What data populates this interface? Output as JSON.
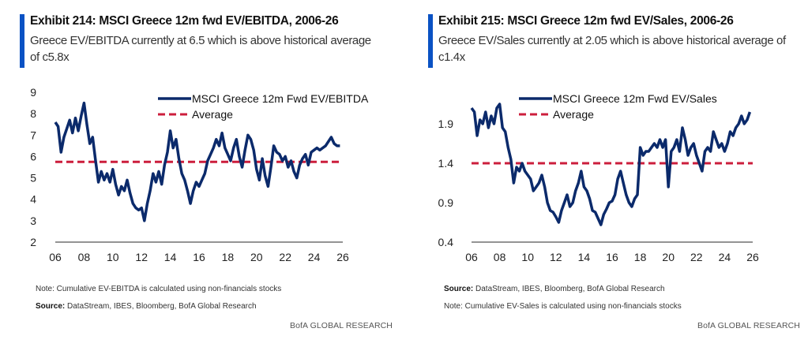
{
  "colors": {
    "accent": "#0a52c4",
    "series": "#0b2a6b",
    "average": "#cc1e3c",
    "axis": "#555555"
  },
  "exhibits": [
    {
      "title": "Exhibit 214: MSCI Greece 12m fwd EV/EBITDA, 2006-26",
      "subtitle": "Greece EV/EBITDA currently at 6.5 which is above historical average of c5.8x",
      "notes": [
        {
          "prefix": "",
          "text": "Note: Cumulative EV-EBITDA is calculated using non-financials stocks"
        },
        {
          "prefix": "Source:",
          "text": " DataStream, IBES, Bloomberg, BofA Global Research"
        }
      ],
      "brand": "BofA GLOBAL RESEARCH"
    },
    {
      "title": "Exhibit 215: MSCI Greece 12m fwd EV/Sales, 2006-26",
      "subtitle": "Greece EV/Sales currently at 2.05 which is above historical average of c1.4x",
      "notes": [
        {
          "prefix": "Source:",
          "text": " DataStream, IBES, Bloomberg, BofA Global Research"
        },
        {
          "prefix": "",
          "text": "Note: Cumulative EV-Sales is calculated using non-financials stocks"
        }
      ],
      "brand": "BofA GLOBAL RESEARCH"
    }
  ],
  "chart_data": [
    {
      "type": "line",
      "title": "MSCI Greece 12m fwd EV/EBITDA, 2006-26",
      "xlabel": "",
      "ylabel": "",
      "xlim": [
        2006,
        2026
      ],
      "ylim": [
        2,
        9
      ],
      "yticks": [
        2,
        3,
        4,
        5,
        6,
        7,
        8,
        9
      ],
      "ytick_labels": [
        "2",
        "3",
        "4",
        "5",
        "6",
        "7",
        "8",
        "9"
      ],
      "xticks": [
        2006,
        2008,
        2010,
        2012,
        2014,
        2016,
        2018,
        2020,
        2022,
        2024,
        2026
      ],
      "xtick_labels": [
        "06",
        "08",
        "10",
        "12",
        "14",
        "16",
        "18",
        "20",
        "22",
        "24",
        "26"
      ],
      "grid": false,
      "legend": "top-right",
      "series": [
        {
          "name": "MSCI Greece 12m Fwd EV/EBITDA",
          "style": "solid",
          "x": [
            2006.0,
            2006.2,
            2006.4,
            2006.6,
            2006.8,
            2007.0,
            2007.2,
            2007.4,
            2007.6,
            2007.8,
            2008.0,
            2008.2,
            2008.4,
            2008.6,
            2008.8,
            2009.0,
            2009.2,
            2009.4,
            2009.6,
            2009.8,
            2010.0,
            2010.2,
            2010.4,
            2010.6,
            2010.8,
            2011.0,
            2011.2,
            2011.4,
            2011.6,
            2011.8,
            2012.0,
            2012.2,
            2012.4,
            2012.6,
            2012.8,
            2013.0,
            2013.2,
            2013.4,
            2013.6,
            2013.8,
            2014.0,
            2014.2,
            2014.4,
            2014.6,
            2014.8,
            2015.0,
            2015.2,
            2015.4,
            2015.6,
            2015.8,
            2016.0,
            2016.2,
            2016.4,
            2016.6,
            2016.8,
            2017.0,
            2017.2,
            2017.4,
            2017.6,
            2017.8,
            2018.0,
            2018.2,
            2018.4,
            2018.6,
            2018.8,
            2019.0,
            2019.2,
            2019.4,
            2019.6,
            2019.8,
            2020.0,
            2020.2,
            2020.4,
            2020.6,
            2020.8,
            2021.0,
            2021.2,
            2021.4,
            2021.6,
            2021.8,
            2022.0,
            2022.2,
            2022.4,
            2022.6,
            2022.8,
            2023.0,
            2023.2,
            2023.4,
            2023.6,
            2023.8,
            2024.0,
            2024.2,
            2024.4,
            2024.6,
            2024.8,
            2025.0,
            2025.2,
            2025.4,
            2025.6,
            2025.8
          ],
          "values": [
            7.6,
            7.4,
            6.2,
            6.9,
            7.3,
            7.7,
            7.1,
            7.8,
            7.2,
            7.9,
            8.5,
            7.5,
            6.6,
            6.9,
            5.8,
            4.8,
            5.3,
            4.9,
            5.2,
            4.8,
            5.4,
            4.7,
            4.2,
            4.6,
            4.4,
            4.9,
            4.3,
            3.8,
            3.6,
            3.5,
            3.6,
            3.0,
            3.8,
            4.4,
            5.2,
            4.8,
            5.3,
            4.7,
            5.6,
            6.2,
            7.2,
            6.4,
            6.8,
            5.9,
            5.2,
            4.9,
            4.4,
            3.8,
            4.4,
            4.8,
            4.6,
            4.9,
            5.2,
            5.8,
            6.1,
            6.4,
            6.8,
            6.5,
            7.1,
            6.4,
            6.1,
            5.8,
            6.4,
            6.8,
            6.0,
            5.5,
            6.3,
            7.0,
            6.8,
            6.3,
            5.4,
            4.9,
            5.9,
            5.1,
            4.6,
            5.5,
            6.5,
            6.2,
            6.1,
            5.8,
            6.0,
            5.5,
            5.8,
            5.3,
            5.0,
            5.6,
            5.9,
            6.1,
            5.6,
            6.2,
            6.3,
            6.4,
            6.3,
            6.4,
            6.5,
            6.7,
            6.9,
            6.6,
            6.5,
            6.5
          ]
        },
        {
          "name": "Average",
          "style": "dashed",
          "value": 5.75
        }
      ]
    },
    {
      "type": "line",
      "title": "MSCI Greece 12m fwd EV/Sales, 2006-26",
      "xlabel": "",
      "ylabel": "",
      "xlim": [
        2006,
        2026
      ],
      "ylim": [
        0.4,
        2.4
      ],
      "yticks": [
        0.4,
        0.9,
        1.4,
        1.9
      ],
      "ytick_labels": [
        "0.4",
        "0.9",
        "1.4",
        "1.9"
      ],
      "xticks": [
        2006,
        2008,
        2010,
        2012,
        2014,
        2016,
        2018,
        2020,
        2022,
        2024,
        2026
      ],
      "xtick_labels": [
        "06",
        "08",
        "10",
        "12",
        "14",
        "16",
        "18",
        "20",
        "22",
        "24",
        "26"
      ],
      "grid": false,
      "legend": "top-right",
      "series": [
        {
          "name": "MSCI Greece 12m Fwd EV/Sales",
          "style": "solid",
          "x": [
            2006.0,
            2006.2,
            2006.4,
            2006.6,
            2006.8,
            2007.0,
            2007.2,
            2007.4,
            2007.6,
            2007.8,
            2008.0,
            2008.2,
            2008.4,
            2008.6,
            2008.8,
            2009.0,
            2009.2,
            2009.4,
            2009.6,
            2009.8,
            2010.0,
            2010.2,
            2010.4,
            2010.6,
            2010.8,
            2011.0,
            2011.2,
            2011.4,
            2011.6,
            2011.8,
            2012.0,
            2012.2,
            2012.4,
            2012.6,
            2012.8,
            2013.0,
            2013.2,
            2013.4,
            2013.6,
            2013.8,
            2014.0,
            2014.2,
            2014.4,
            2014.6,
            2014.8,
            2015.0,
            2015.2,
            2015.4,
            2015.6,
            2015.8,
            2016.0,
            2016.2,
            2016.4,
            2016.6,
            2016.8,
            2017.0,
            2017.2,
            2017.4,
            2017.6,
            2017.8,
            2018.0,
            2018.2,
            2018.4,
            2018.6,
            2018.8,
            2019.0,
            2019.2,
            2019.4,
            2019.6,
            2019.8,
            2020.0,
            2020.2,
            2020.4,
            2020.6,
            2020.8,
            2021.0,
            2021.2,
            2021.4,
            2021.6,
            2021.8,
            2022.0,
            2022.2,
            2022.4,
            2022.6,
            2022.8,
            2023.0,
            2023.2,
            2023.4,
            2023.6,
            2023.8,
            2024.0,
            2024.2,
            2024.4,
            2024.6,
            2024.8,
            2025.0,
            2025.2,
            2025.4,
            2025.6,
            2025.8
          ],
          "values": [
            2.1,
            2.05,
            1.75,
            1.95,
            1.9,
            2.05,
            1.85,
            2.0,
            1.9,
            2.1,
            2.15,
            1.85,
            1.8,
            1.6,
            1.45,
            1.15,
            1.35,
            1.3,
            1.4,
            1.3,
            1.25,
            1.2,
            1.05,
            1.1,
            1.15,
            1.25,
            1.1,
            0.9,
            0.8,
            0.78,
            0.72,
            0.65,
            0.8,
            0.9,
            1.0,
            0.85,
            0.9,
            1.05,
            1.15,
            1.3,
            1.1,
            1.05,
            0.95,
            0.8,
            0.78,
            0.7,
            0.62,
            0.75,
            0.82,
            0.9,
            0.92,
            1.0,
            1.2,
            1.3,
            1.15,
            1.0,
            0.9,
            0.85,
            0.95,
            1.0,
            1.6,
            1.5,
            1.55,
            1.55,
            1.6,
            1.65,
            1.6,
            1.7,
            1.6,
            1.7,
            1.1,
            1.55,
            1.6,
            1.7,
            1.55,
            1.85,
            1.7,
            1.5,
            1.6,
            1.65,
            1.5,
            1.4,
            1.3,
            1.55,
            1.6,
            1.55,
            1.8,
            1.7,
            1.6,
            1.65,
            1.55,
            1.65,
            1.8,
            1.75,
            1.85,
            1.9,
            2.0,
            1.9,
            1.95,
            2.05
          ]
        },
        {
          "name": "Average",
          "style": "dashed",
          "value": 1.4
        }
      ]
    }
  ]
}
